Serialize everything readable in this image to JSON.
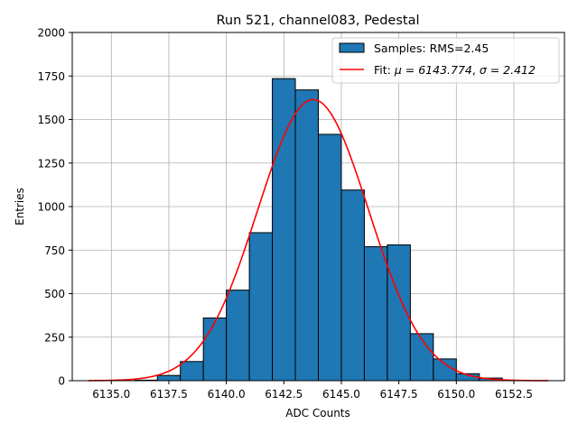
{
  "chart_data": {
    "type": "bar",
    "title": "Run 521, channel083, Pedestal",
    "xlabel": "ADC Counts",
    "ylabel": "Entries",
    "xlim": [
      6133.3,
      6154.7
    ],
    "ylim": [
      0,
      2000
    ],
    "grid": true,
    "legend_position": "top-right",
    "xticks": [
      "6135.0",
      "6137.5",
      "6140.0",
      "6142.5",
      "6145.0",
      "6147.5",
      "6150.0",
      "6152.5"
    ],
    "xtick_values": [
      6135.0,
      6137.5,
      6140.0,
      6142.5,
      6145.0,
      6147.5,
      6150.0,
      6152.5
    ],
    "yticks": [
      "0",
      "250",
      "500",
      "750",
      "1000",
      "1250",
      "1500",
      "1750",
      "2000"
    ],
    "ytick_values": [
      0,
      250,
      500,
      750,
      1000,
      1250,
      1500,
      1750,
      2000
    ],
    "histogram": {
      "name": "Samples: RMS=2.45",
      "bin_edges": [
        6134.0,
        6135.0,
        6136.0,
        6137.0,
        6138.0,
        6139.0,
        6140.0,
        6141.0,
        6142.0,
        6143.0,
        6144.0,
        6145.0,
        6146.0,
        6147.0,
        6148.0,
        6149.0,
        6150.0,
        6151.0,
        6152.0
      ],
      "counts": [
        0,
        0,
        3,
        30,
        110,
        360,
        520,
        850,
        1735,
        1670,
        1415,
        1095,
        770,
        780,
        270,
        125,
        40,
        15
      ],
      "color": "#1f77b4",
      "edgecolor": "#000000"
    },
    "fit": {
      "name_prefix": "Fit: ",
      "mu_label": "μ = 6143.774",
      "sigma_label": "σ = 2.412",
      "mu": 6143.774,
      "sigma": 2.412,
      "peak": 1615,
      "x_range": [
        6134.0,
        6154.0
      ],
      "color": "#ff0000"
    }
  }
}
